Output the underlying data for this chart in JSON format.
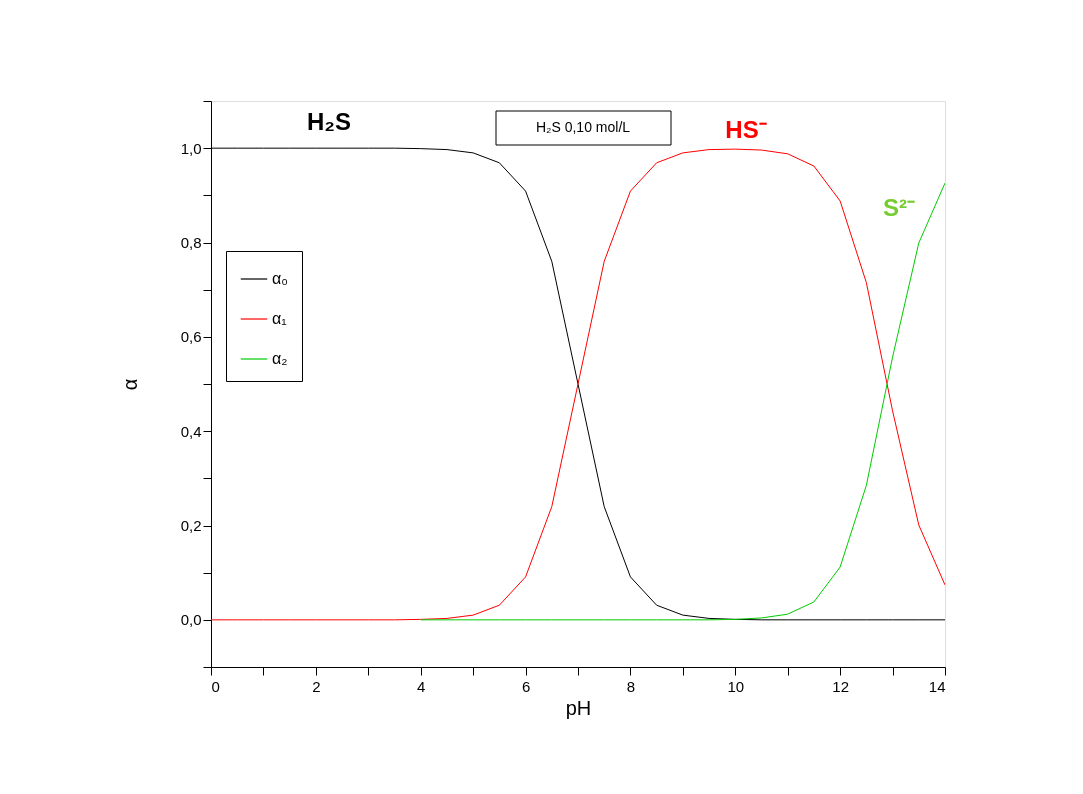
{
  "chart_data": {
    "type": "line",
    "xlabel": "pH",
    "ylabel": "α",
    "x": [
      0,
      0.5,
      1,
      1.5,
      2,
      2.5,
      3,
      3.5,
      4,
      4.5,
      5,
      5.5,
      6,
      6.5,
      7,
      7.5,
      8,
      8.5,
      9,
      9.5,
      10,
      10.5,
      11,
      11.5,
      12,
      12.5,
      13,
      13.5,
      14
    ],
    "series": [
      {
        "name": "α₀",
        "color": "#000000",
        "values": [
          1,
          1,
          1,
          1,
          1,
          1,
          1,
          1,
          0.999,
          0.997,
          0.99,
          0.969,
          0.909,
          0.76,
          0.5,
          0.24,
          0.091,
          0.031,
          0.01,
          0.003,
          0.001,
          0,
          0,
          0,
          0,
          0,
          0,
          0,
          0
        ]
      },
      {
        "name": "α₁",
        "color": "#ff0000",
        "values": [
          0,
          0,
          0,
          0,
          0,
          0,
          0,
          0,
          0.001,
          0.003,
          0.01,
          0.031,
          0.091,
          0.24,
          0.5,
          0.76,
          0.909,
          0.969,
          0.99,
          0.997,
          0.998,
          0.996,
          0.988,
          0.962,
          0.888,
          0.715,
          0.443,
          0.201,
          0.074
        ]
      },
      {
        "name": "α₂",
        "color": "#00cc00",
        "values": [
          null,
          null,
          null,
          null,
          null,
          null,
          null,
          null,
          0,
          0,
          0,
          0,
          0,
          0,
          0,
          0,
          0,
          0,
          0,
          0,
          0.001,
          0.004,
          0.012,
          0.038,
          0.112,
          0.285,
          0.557,
          0.799,
          0.926
        ]
      }
    ],
    "xlim": [
      0,
      14
    ],
    "xticks": [
      0,
      {
        "value": 1,
        "label": null
      },
      2,
      {
        "value": 3,
        "label": null
      },
      4,
      {
        "value": 5,
        "label": null
      },
      6,
      {
        "value": 7,
        "label": null
      },
      8,
      {
        "value": 9,
        "label": null
      },
      10,
      {
        "value": 11,
        "label": null
      },
      12,
      {
        "value": 13,
        "label": null
      },
      14
    ],
    "ylim": [
      -0.1,
      1.1
    ],
    "yticks": [
      {
        "value": -0.1,
        "label": null
      },
      {
        "value": 0,
        "label": "0,0"
      },
      {
        "value": 0.1,
        "label": null
      },
      {
        "value": 0.2,
        "label": "0,2"
      },
      {
        "value": 0.3,
        "label": null
      },
      {
        "value": 0.4,
        "label": "0,4"
      },
      {
        "value": 0.5,
        "label": null
      },
      {
        "value": 0.6,
        "label": "0,6"
      },
      {
        "value": 0.7,
        "label": null
      },
      {
        "value": 0.8,
        "label": "0,8"
      },
      {
        "value": 0.9,
        "label": null
      },
      {
        "value": 1.0,
        "label": "1,0"
      },
      {
        "value": 1.1,
        "label": null
      }
    ],
    "annotations": [
      "H₂S",
      "HS⁻",
      "S²⁻",
      "H₂S 0,10 mol/L"
    ],
    "legend": "top left",
    "grid": false,
    "marker": "none",
    "line_style": "solid"
  }
}
